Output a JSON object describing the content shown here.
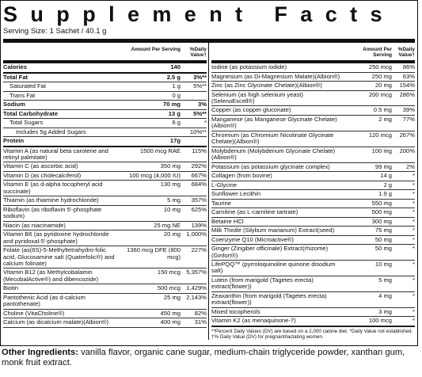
{
  "title": "Supplement Facts",
  "serving_size": "Serving Size: 1 Sachet / 40.1 g",
  "header": {
    "amount": "Amount Per Serving",
    "dv": "%Daily Value†"
  },
  "left_rows": [
    {
      "name": "Calories",
      "amount": "140"
    },
    {
      "name": "Total Fat",
      "amount": "2.5 g",
      "dv": "3%**"
    },
    {
      "name": "Saturated Fat",
      "amount": "1 g",
      "dv": "5%**"
    },
    {
      "name": "Trans Fat",
      "amount": "0 g"
    },
    {
      "name": "Sodium",
      "amount": "70 mg",
      "dv": "3%"
    },
    {
      "name": "Total Carbohydrate",
      "amount": "13 g",
      "dv": "5%**"
    },
    {
      "name": "Total Sugars",
      "amount": "6 g",
      "dv": "*"
    },
    {
      "name": "Includes 5g Added Sugars",
      "dv": "10%**"
    },
    {
      "name": "Protein",
      "amount": "17g"
    },
    {
      "name": "Vitamin A (as natural beta carotene and retinyl palmitate)",
      "amount": "1500 mcg RAE",
      "dv": "115%"
    },
    {
      "name": "Vitamin C (as ascorbic acid)",
      "amount": "350 mg",
      "dv": "292%"
    },
    {
      "name": "Vitamin D (as cholecalciferol)",
      "amount": "100 mcg (4,000 IU)",
      "dv": "667%"
    },
    {
      "name": "Vitamin E (as d-alpha tocopheryl acid succinate)",
      "amount": "130 mg",
      "dv": "684%"
    },
    {
      "name": "Thiamin (as thiamine hydrochloride)",
      "amount": "5 mg",
      "dv": "357%"
    },
    {
      "name": "Riboflavin (as riboflavin 5'-phosphate sodium)",
      "amount": "10 mg",
      "dv": "625%"
    },
    {
      "name": "Niacin (as niacinamide)",
      "amount": "25 mg NE",
      "dv": "139%"
    },
    {
      "name": "Vitamin B6 (as pyridoxine hydrochloride and pyridoxal-5'-phosphate)",
      "amount": "20 mg",
      "dv": "1,000%"
    },
    {
      "name": "Folate (as(6S)-5-Methyltetrahydro-folic acid, Glucosamine salt (Quatrefolic®) and calcium folinate)",
      "amount": "1360 mcg DFE (800 mcg)",
      "dv": "227%"
    },
    {
      "name": "Vitamin B12 (as Methylcobalamin (MecobalActive®) and dibencozide)",
      "amount": "150 mcg",
      "dv": "5,357%"
    },
    {
      "name": "Biotin",
      "amount": "500 mcg",
      "dv": "1,429%"
    },
    {
      "name": "Pantothenic Acid (as d-calcium pantothenate)",
      "amount": "25 mg",
      "dv": "2,143%"
    },
    {
      "name": "Choline (VitaCholine®)",
      "amount": "450 mg",
      "dv": "82%"
    },
    {
      "name": "Calcium (as dicalcium malate)(Albion®)",
      "amount": "400 mg",
      "dv": "31%"
    }
  ],
  "right_rows": [
    {
      "name": "Iodine (as potassium iodide)",
      "amount": "250 mcg",
      "dv": "86%"
    },
    {
      "name": "Magnesium (as Di-Magnesium Malate)(Albion®)",
      "amount": "250 mg",
      "dv": "63%"
    },
    {
      "name": "Zinc (as Zinc Glycinate Chelate)(Albion®)",
      "amount": "20 mg",
      "dv": "154%"
    },
    {
      "name": "Selenium (as high selenium yeast) (SelenoExcell®)",
      "amount": "200 mcg",
      "dv": "286%"
    },
    {
      "name": "Copper (as copper gluconate)",
      "amount": "0.5 mg",
      "dv": "39%"
    },
    {
      "name": "Manganese (as Manganese Glycinate Chelate)(Albion®)",
      "amount": "2 mg",
      "dv": "77%"
    },
    {
      "name": "Chromium (as Chromium Nicotinate Glycinate Chelate)(Albion®)",
      "amount": "120 mcg",
      "dv": "267%"
    },
    {
      "name": "Molybdenum (Molybdenum Glycinate Chelate)(Albion®)",
      "amount": "100 mg",
      "dv": "200%"
    },
    {
      "name": "Potassium (as potassium glycinate complex)",
      "amount": "99 mg",
      "dv": "2%"
    },
    {
      "name": "Collagen (from bovine)",
      "amount": "14 g",
      "dv": "*"
    },
    {
      "name": "L-Glycine",
      "amount": "2 g",
      "dv": "*"
    },
    {
      "name": "Sunflower Lecithin",
      "amount": "1.9 g",
      "dv": "*"
    },
    {
      "name": "Taurine",
      "amount": "550 mg",
      "dv": "*"
    },
    {
      "name": "Carnitine (as L-carnitine tartrate)",
      "amount": "500 mg",
      "dv": "*"
    },
    {
      "name": "Betaine HCl",
      "amount": "300 mg",
      "dv": "*"
    },
    {
      "name": "Milk Thistle (Silybum marianum) Extract(seed)",
      "amount": "75 mg",
      "dv": "*"
    },
    {
      "name": "Coenzyme Q10 (Microactive®)",
      "amount": "50 mg",
      "dv": "*"
    },
    {
      "name": "Ginger (Zingiber officinale) Extract(rhizome)(Ginfort®)",
      "amount": "50 mg",
      "dv": "*"
    },
    {
      "name": "LifePQQ™ (pyrroloquinoline quinone disodium salt)",
      "amount": "10 mg",
      "dv": "*"
    },
    {
      "name": "Lutein (from marigold (Tagetes erecta) extract(flower))",
      "amount": "5 mg",
      "dv": "*"
    },
    {
      "name": "Zeaxanthin (from marigold (Tagetes erecta) extract(flower))",
      "amount": "4 mg",
      "dv": "*"
    },
    {
      "name": "Mixed tocopherols",
      "amount": "3 mg",
      "dv": "*"
    },
    {
      "name": "Vitamin K2 (as menaquinone-7)",
      "amount": "100 mcg",
      "dv": "*"
    }
  ],
  "footnote": "**Percent Daily Values (DV) are based on a 2,000 calorie diet. *Daily Value not established. †% Daily Value (DV) for pregnant/lactating women.",
  "other_ingredients": {
    "label": "Other Ingredients:",
    "text": "vanilla flavor, organic cane sugar, medium-chain triglyceride powder, xanthan gum, monk fruit extract."
  }
}
